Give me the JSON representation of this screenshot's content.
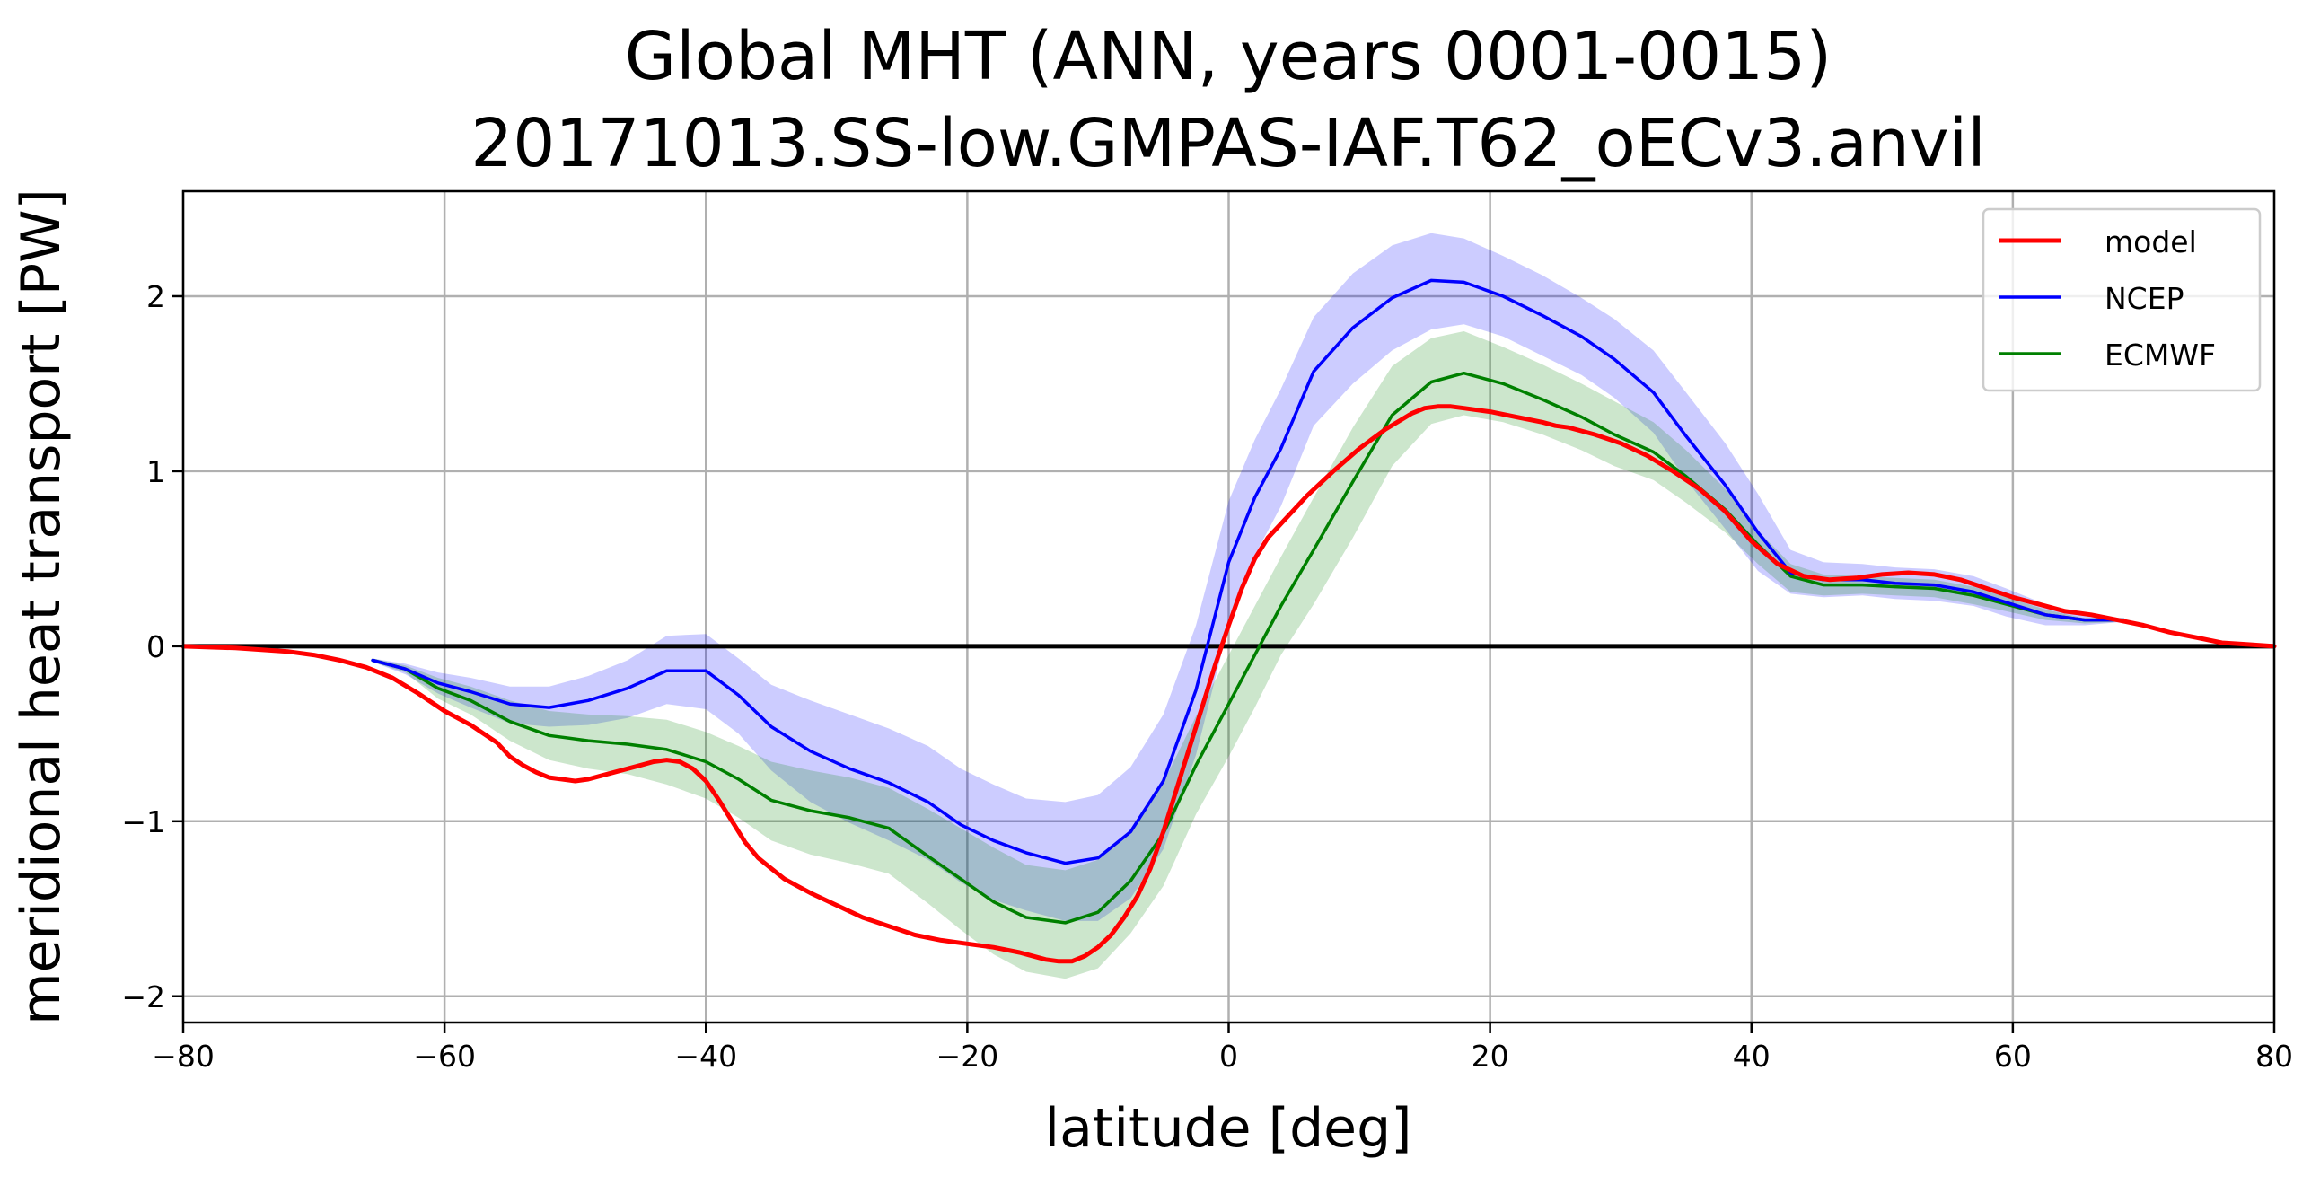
{
  "chart_data": {
    "type": "line",
    "title": "Global MHT (ANN, years 0001-0015)",
    "subtitle": "20171013.SS-low.GMPAS-IAF.T62_oECv3.anvil",
    "xlabel": "latitude [deg]",
    "ylabel": "meridional heat transport [PW]",
    "xlim": [
      -80,
      80
    ],
    "ylim": [
      -2.15,
      2.6
    ],
    "xticks": [
      -80,
      -60,
      -40,
      -20,
      0,
      20,
      40,
      60,
      80
    ],
    "yticks": [
      -2,
      -1,
      0,
      1,
      2
    ],
    "xtick_labels": [
      "−80",
      "−60",
      "−40",
      "−20",
      "0",
      "20",
      "40",
      "60",
      "80"
    ],
    "ytick_labels": [
      "−2",
      "−1",
      "0",
      "1",
      "2"
    ],
    "grid": true,
    "legend_position": "top-right",
    "zero_line": true,
    "series": [
      {
        "name": "model",
        "color": "#ff0000",
        "x": [
          -80,
          -76,
          -72,
          -70,
          -68,
          -66,
          -64,
          -62,
          -60,
          -58,
          -56,
          -55,
          -54,
          -53,
          -52,
          -51,
          -50,
          -49,
          -48,
          -47,
          -46,
          -45,
          -44,
          -43,
          -42,
          -41,
          -40,
          -39,
          -38,
          -37,
          -36,
          -35,
          -34,
          -33,
          -32,
          -30,
          -28,
          -26,
          -24,
          -22,
          -20,
          -18,
          -16,
          -14,
          -13,
          -12,
          -11,
          -10,
          -9,
          -8,
          -7,
          -6,
          -5,
          -4,
          -3,
          -2,
          -1,
          0,
          1,
          2,
          3,
          4,
          6,
          8,
          10,
          12,
          14,
          15,
          16,
          17,
          18,
          19,
          20,
          22,
          24,
          25,
          26,
          28,
          30,
          32,
          34,
          36,
          38,
          40,
          42,
          44,
          46,
          48,
          50,
          52,
          54,
          56,
          58,
          60,
          62,
          64,
          65,
          66,
          68,
          70,
          72,
          74,
          76,
          78,
          80
        ],
        "y": [
          0.0,
          -0.01,
          -0.03,
          -0.05,
          -0.08,
          -0.12,
          -0.18,
          -0.27,
          -0.37,
          -0.45,
          -0.55,
          -0.63,
          -0.68,
          -0.72,
          -0.75,
          -0.76,
          -0.77,
          -0.76,
          -0.74,
          -0.72,
          -0.7,
          -0.68,
          -0.66,
          -0.65,
          -0.66,
          -0.7,
          -0.77,
          -0.88,
          -1.0,
          -1.12,
          -1.21,
          -1.27,
          -1.33,
          -1.37,
          -1.41,
          -1.48,
          -1.55,
          -1.6,
          -1.65,
          -1.68,
          -1.7,
          -1.72,
          -1.75,
          -1.79,
          -1.8,
          -1.8,
          -1.77,
          -1.72,
          -1.65,
          -1.55,
          -1.43,
          -1.27,
          -1.06,
          -0.82,
          -0.58,
          -0.34,
          -0.1,
          0.12,
          0.33,
          0.5,
          0.62,
          0.7,
          0.86,
          1.0,
          1.13,
          1.24,
          1.33,
          1.36,
          1.37,
          1.37,
          1.36,
          1.35,
          1.34,
          1.31,
          1.28,
          1.26,
          1.25,
          1.21,
          1.16,
          1.09,
          1.0,
          0.9,
          0.77,
          0.6,
          0.47,
          0.4,
          0.38,
          0.39,
          0.41,
          0.42,
          0.41,
          0.38,
          0.33,
          0.28,
          0.24,
          0.2,
          0.19,
          0.18,
          0.15,
          0.12,
          0.08,
          0.05,
          0.02,
          0.01,
          0.0
        ]
      },
      {
        "name": "NCEP",
        "color": "#0000ff",
        "x": [
          -65.5,
          -63,
          -60.5,
          -58,
          -55,
          -52,
          -49,
          -46,
          -43,
          -40,
          -37.5,
          -35,
          -32,
          -29,
          -26,
          -23,
          -20.5,
          -18,
          -15.5,
          -12.5,
          -10,
          -7.5,
          -5,
          -2.5,
          0,
          2,
          4,
          6.5,
          9.5,
          12.5,
          15.5,
          18,
          21,
          24,
          27,
          29.5,
          32.5,
          35,
          38,
          40.5,
          43,
          45.5,
          48.5,
          51,
          54,
          57,
          59.5,
          62.5,
          65.5,
          68.5
        ],
        "y": [
          -0.08,
          -0.13,
          -0.21,
          -0.26,
          -0.33,
          -0.35,
          -0.31,
          -0.24,
          -0.14,
          -0.14,
          -0.28,
          -0.46,
          -0.6,
          -0.7,
          -0.78,
          -0.89,
          -1.02,
          -1.11,
          -1.18,
          -1.24,
          -1.21,
          -1.06,
          -0.77,
          -0.25,
          0.48,
          0.85,
          1.13,
          1.57,
          1.82,
          1.99,
          2.09,
          2.08,
          2.0,
          1.89,
          1.77,
          1.64,
          1.45,
          1.2,
          0.92,
          0.65,
          0.42,
          0.38,
          0.38,
          0.36,
          0.35,
          0.31,
          0.25,
          0.18,
          0.15,
          0.15
        ]
      },
      {
        "name": "ECMWF",
        "color": "#008000",
        "x": [
          -65.5,
          -63,
          -60.5,
          -58,
          -55,
          -52,
          -49,
          -46,
          -43,
          -40,
          -37.5,
          -35,
          -32,
          -29,
          -26,
          -23,
          -20.5,
          -18,
          -15.5,
          -12.5,
          -10,
          -7.5,
          -5,
          -2.5,
          0,
          2,
          4,
          6.5,
          9.5,
          12.5,
          15.5,
          18,
          21,
          24,
          27,
          29.5,
          32.5,
          35,
          38,
          40.5,
          43,
          45.5,
          48.5,
          51,
          54,
          57,
          59.5,
          62.5,
          65.5,
          68.5
        ],
        "y": [
          -0.08,
          -0.13,
          -0.24,
          -0.31,
          -0.43,
          -0.51,
          -0.54,
          -0.56,
          -0.59,
          -0.66,
          -0.76,
          -0.88,
          -0.94,
          -0.98,
          -1.04,
          -1.2,
          -1.33,
          -1.46,
          -1.55,
          -1.58,
          -1.52,
          -1.34,
          -1.07,
          -0.68,
          -0.33,
          -0.05,
          0.23,
          0.55,
          0.94,
          1.32,
          1.51,
          1.56,
          1.5,
          1.41,
          1.31,
          1.21,
          1.11,
          0.97,
          0.78,
          0.58,
          0.4,
          0.35,
          0.35,
          0.34,
          0.33,
          0.29,
          0.24,
          0.18,
          0.15,
          0.15
        ]
      }
    ],
    "bands": [
      {
        "of": "NCEP",
        "color": "#0000ff",
        "opacity": 0.2,
        "x": [
          -65.5,
          -63,
          -60.5,
          -58,
          -55,
          -52,
          -49,
          -46,
          -43,
          -40,
          -37.5,
          -35,
          -32,
          -29,
          -26,
          -23,
          -20.5,
          -18,
          -15.5,
          -12.5,
          -10,
          -7.5,
          -5,
          -2.5,
          0,
          2,
          4,
          6.5,
          9.5,
          12.5,
          15.5,
          18,
          21,
          24,
          27,
          29.5,
          32.5,
          35,
          38,
          40.5,
          43,
          45.5,
          48.5,
          51,
          54,
          57,
          59.5,
          62.5,
          65.5,
          68.5
        ],
        "upper": [
          -0.07,
          -0.1,
          -0.15,
          -0.18,
          -0.23,
          -0.23,
          -0.17,
          -0.08,
          0.06,
          0.07,
          -0.07,
          -0.22,
          -0.31,
          -0.39,
          -0.47,
          -0.57,
          -0.7,
          -0.79,
          -0.87,
          -0.89,
          -0.85,
          -0.69,
          -0.39,
          0.12,
          0.83,
          1.18,
          1.47,
          1.88,
          2.13,
          2.29,
          2.36,
          2.33,
          2.23,
          2.12,
          1.99,
          1.87,
          1.69,
          1.45,
          1.16,
          0.87,
          0.55,
          0.48,
          0.47,
          0.45,
          0.44,
          0.4,
          0.33,
          0.24,
          0.18,
          0.16
        ],
        "lower": [
          -0.09,
          -0.16,
          -0.27,
          -0.35,
          -0.44,
          -0.46,
          -0.45,
          -0.41,
          -0.33,
          -0.36,
          -0.5,
          -0.71,
          -0.89,
          -1.01,
          -1.11,
          -1.22,
          -1.35,
          -1.45,
          -1.51,
          -1.57,
          -1.57,
          -1.44,
          -1.16,
          -0.62,
          0.12,
          0.52,
          0.8,
          1.26,
          1.5,
          1.69,
          1.81,
          1.84,
          1.77,
          1.66,
          1.55,
          1.42,
          1.22,
          0.95,
          0.67,
          0.43,
          0.3,
          0.28,
          0.29,
          0.27,
          0.26,
          0.23,
          0.17,
          0.12,
          0.12,
          0.14
        ]
      },
      {
        "of": "ECMWF",
        "color": "#008000",
        "opacity": 0.2,
        "x": [
          -65.5,
          -63,
          -60.5,
          -58,
          -55,
          -52,
          -49,
          -46,
          -43,
          -40,
          -37.5,
          -35,
          -32,
          -29,
          -26,
          -23,
          -20.5,
          -18,
          -15.5,
          -12.5,
          -10,
          -7.5,
          -5,
          -2.5,
          0,
          2,
          4,
          6.5,
          9.5,
          12.5,
          15.5,
          18,
          21,
          24,
          27,
          29.5,
          32.5,
          35,
          38,
          40.5,
          43,
          45.5,
          48.5,
          51,
          54,
          57,
          59.5,
          62.5,
          65.5,
          68.5
        ],
        "upper": [
          -0.07,
          -0.11,
          -0.18,
          -0.23,
          -0.31,
          -0.37,
          -0.39,
          -0.4,
          -0.42,
          -0.49,
          -0.57,
          -0.66,
          -0.71,
          -0.75,
          -0.81,
          -0.93,
          -1.04,
          -1.15,
          -1.25,
          -1.28,
          -1.22,
          -1.05,
          -0.78,
          -0.4,
          -0.05,
          0.23,
          0.51,
          0.85,
          1.25,
          1.6,
          1.76,
          1.8,
          1.71,
          1.61,
          1.5,
          1.4,
          1.28,
          1.12,
          0.9,
          0.66,
          0.47,
          0.41,
          0.4,
          0.39,
          0.38,
          0.34,
          0.28,
          0.21,
          0.16,
          0.16
        ],
        "lower": [
          -0.09,
          -0.15,
          -0.3,
          -0.39,
          -0.54,
          -0.65,
          -0.7,
          -0.73,
          -0.79,
          -0.87,
          -0.98,
          -1.11,
          -1.19,
          -1.24,
          -1.3,
          -1.47,
          -1.62,
          -1.76,
          -1.86,
          -1.9,
          -1.84,
          -1.64,
          -1.37,
          -0.96,
          -0.63,
          -0.35,
          -0.05,
          0.24,
          0.62,
          1.03,
          1.27,
          1.32,
          1.28,
          1.21,
          1.12,
          1.03,
          0.95,
          0.82,
          0.65,
          0.47,
          0.31,
          0.29,
          0.3,
          0.29,
          0.28,
          0.24,
          0.2,
          0.15,
          0.13,
          0.14
        ]
      }
    ]
  }
}
